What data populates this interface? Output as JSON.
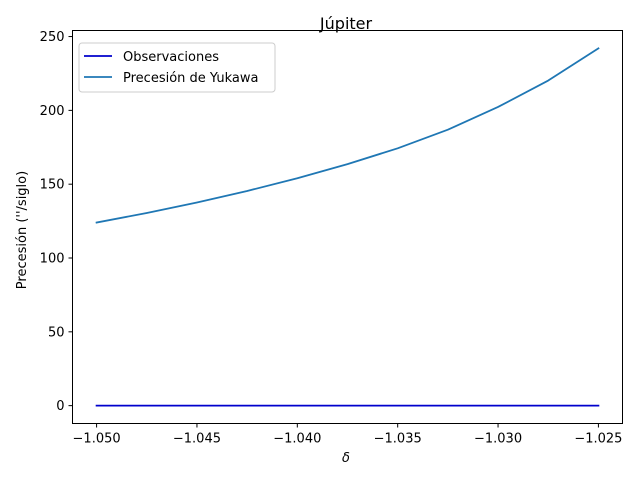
{
  "chart_data": {
    "type": "line",
    "title": "Júpiter",
    "xlabel": "δ",
    "ylabel": "Precesión (''/siglo)",
    "xlim": [
      -1.0512,
      -1.0238
    ],
    "ylim": [
      -12.1,
      254.1
    ],
    "xticks": [
      -1.05,
      -1.045,
      -1.04,
      -1.035,
      -1.03,
      -1.025
    ],
    "xtick_labels": [
      "−1.050",
      "−1.045",
      "−1.040",
      "−1.035",
      "−1.030",
      "−1.025"
    ],
    "yticks": [
      0,
      50,
      100,
      150,
      200,
      250
    ],
    "ytick_labels": [
      "0",
      "50",
      "100",
      "150",
      "200",
      "250"
    ],
    "grid": false,
    "legend_position": "top-left",
    "series": [
      {
        "name": "Observaciones",
        "color": "#0000cc",
        "x": [
          -1.05,
          -1.025
        ],
        "y": [
          0.0,
          0.0
        ]
      },
      {
        "name": "Precesión de Yukawa",
        "color": "#1f77b4",
        "x": [
          -1.05,
          -1.0475,
          -1.045,
          -1.0425,
          -1.04,
          -1.0375,
          -1.035,
          -1.0325,
          -1.03,
          -1.0275,
          -1.025
        ],
        "y": [
          124.0,
          130.5,
          137.6,
          145.4,
          154.0,
          163.6,
          174.3,
          186.9,
          202.3,
          220.2,
          242.0
        ]
      }
    ]
  }
}
